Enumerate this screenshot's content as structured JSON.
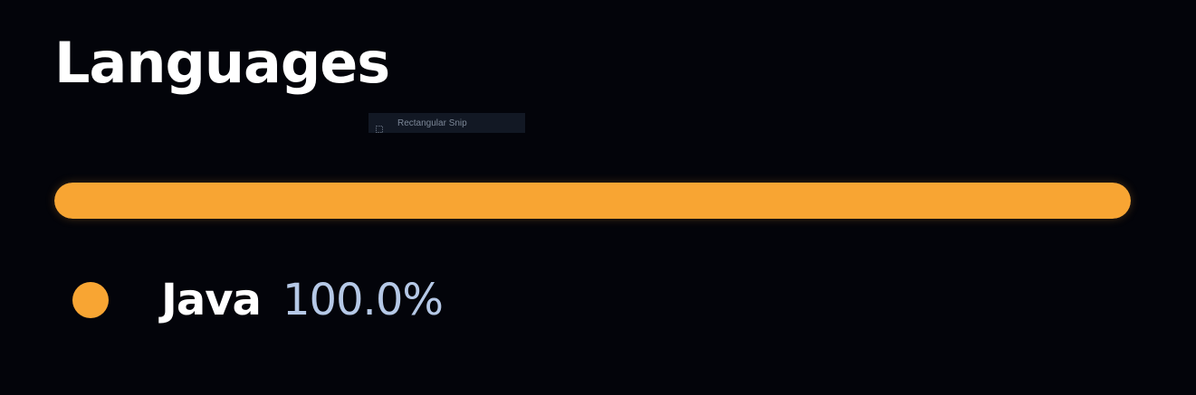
{
  "title": "Languages",
  "overlay": {
    "label": "Rectangular Snip",
    "icon": "snip-icon"
  },
  "languages": [
    {
      "name": "Java",
      "percent_label": "100.0%",
      "percent": 100.0,
      "color": "#f8a533"
    }
  ],
  "colors": {
    "background": "#03040a",
    "title": "#ffffff",
    "percent_text": "#b5c8e6"
  }
}
